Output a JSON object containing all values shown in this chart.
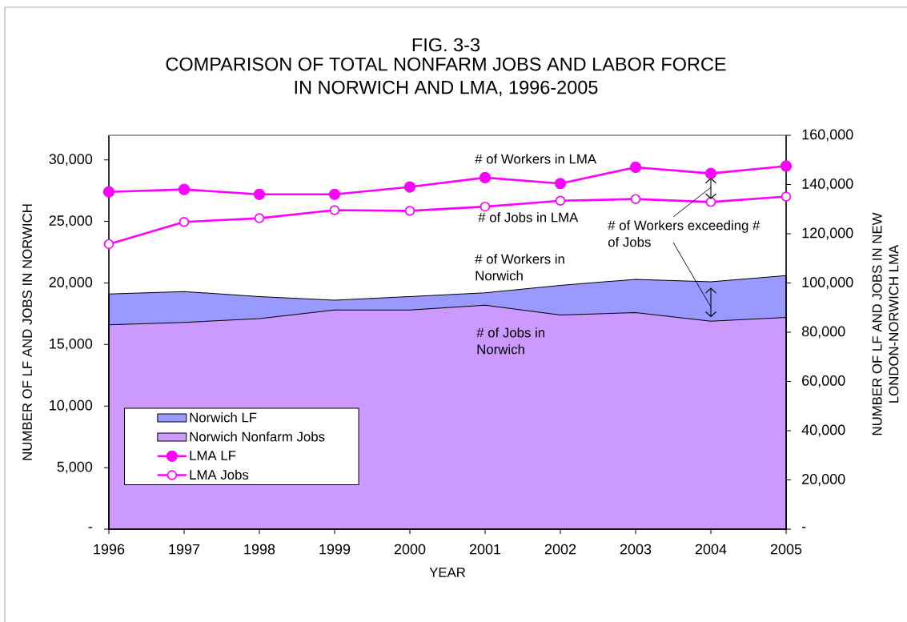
{
  "chart_data": {
    "type": "area",
    "title": "FIG. 3-3",
    "subtitle": "COMPARISON OF TOTAL NONFARM JOBS AND LABOR FORCE IN NORWICH AND LMA, 1996-2005",
    "xlabel": "YEAR",
    "ylabel": "NUMBER OF LF AND JOBS IN NORWICH",
    "y2label": "NUMBER OF LF AND JOBS IN NEW LONDON-NORWICH LMA",
    "x": [
      1996,
      1997,
      1998,
      1999,
      2000,
      2001,
      2002,
      2003,
      2004,
      2005
    ],
    "xlim": [
      1996,
      2005
    ],
    "xticks": [
      1996,
      1997,
      1998,
      1999,
      2000,
      2001,
      2002,
      2003,
      2004,
      2005
    ],
    "ylim": [
      0,
      32000
    ],
    "yticks": [
      {
        "value": 0,
        "label": "-"
      },
      {
        "value": 5000,
        "label": "5,000"
      },
      {
        "value": 10000,
        "label": "10,000"
      },
      {
        "value": 15000,
        "label": "15,000"
      },
      {
        "value": 20000,
        "label": "20,000"
      },
      {
        "value": 25000,
        "label": "25,000"
      },
      {
        "value": 30000,
        "label": "30,000"
      }
    ],
    "y2lim": [
      0,
      160000
    ],
    "y2ticks": [
      {
        "value": 0,
        "label": "-"
      },
      {
        "value": 20000,
        "label": "20,000"
      },
      {
        "value": 40000,
        "label": "40,000"
      },
      {
        "value": 60000,
        "label": "60,000"
      },
      {
        "value": 80000,
        "label": "80,000"
      },
      {
        "value": 100000,
        "label": "100,000"
      },
      {
        "value": 120000,
        "label": "120,000"
      },
      {
        "value": 140000,
        "label": "140,000"
      },
      {
        "value": 160000,
        "label": "160,000"
      }
    ],
    "series": [
      {
        "name": "Norwich LF",
        "color": "#9999ff",
        "values": [
          19100,
          19300,
          18900,
          18600,
          18900,
          19200,
          19800,
          20300,
          20100,
          20600
        ]
      },
      {
        "name": "Norwich Nonfarm Jobs",
        "color": "#cc99ff",
        "values": [
          16600,
          16800,
          17100,
          17800,
          17800,
          18200,
          17400,
          17600,
          16900,
          17200
        ]
      },
      {
        "name": "LMA LF",
        "type": "line",
        "axis": "y2",
        "color": "#ff00ff",
        "marker": "circle",
        "values": [
          137000,
          138000,
          136000,
          136000,
          139000,
          142800,
          140400,
          147000,
          144500,
          147500
        ]
      },
      {
        "name": "LMA Jobs",
        "type": "line",
        "axis": "y2",
        "color": "#ff00ff",
        "marker": "circle",
        "values": [
          115800,
          124800,
          126300,
          129600,
          129300,
          131000,
          133400,
          134100,
          132900,
          135100
        ]
      }
    ],
    "legend": "bottom left",
    "annotations": [
      "# of Workers in LMA",
      "# of Jobs in LMA",
      "# of Workers in Norwich",
      "# of Jobs in Norwich",
      "# of Workers exceeding # of Jobs"
    ]
  }
}
